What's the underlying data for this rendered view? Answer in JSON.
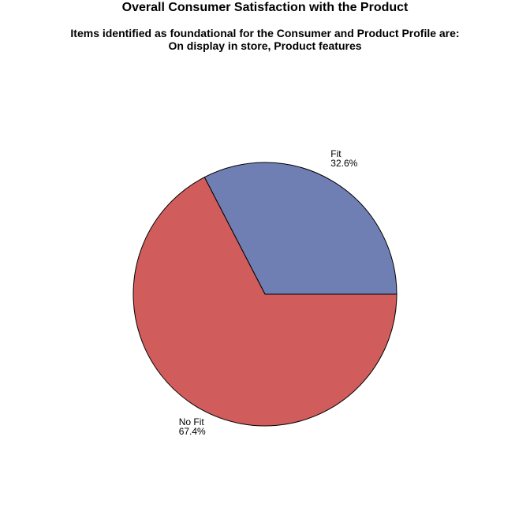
{
  "chart_data": {
    "type": "pie",
    "title": "Overall Consumer Satisfaction with the Product",
    "subtitle": [
      "Items identified as foundational for the Consumer and Product Profile are:",
      "On display in store, Product features"
    ],
    "slices": [
      {
        "label": "Fit",
        "value": 32.6,
        "value_label": "32.6%",
        "color": "#6f7fb3"
      },
      {
        "label": "No Fit",
        "value": 67.4,
        "value_label": "67.4%",
        "color": "#d15c5c"
      }
    ],
    "outline_color": "#000000"
  }
}
